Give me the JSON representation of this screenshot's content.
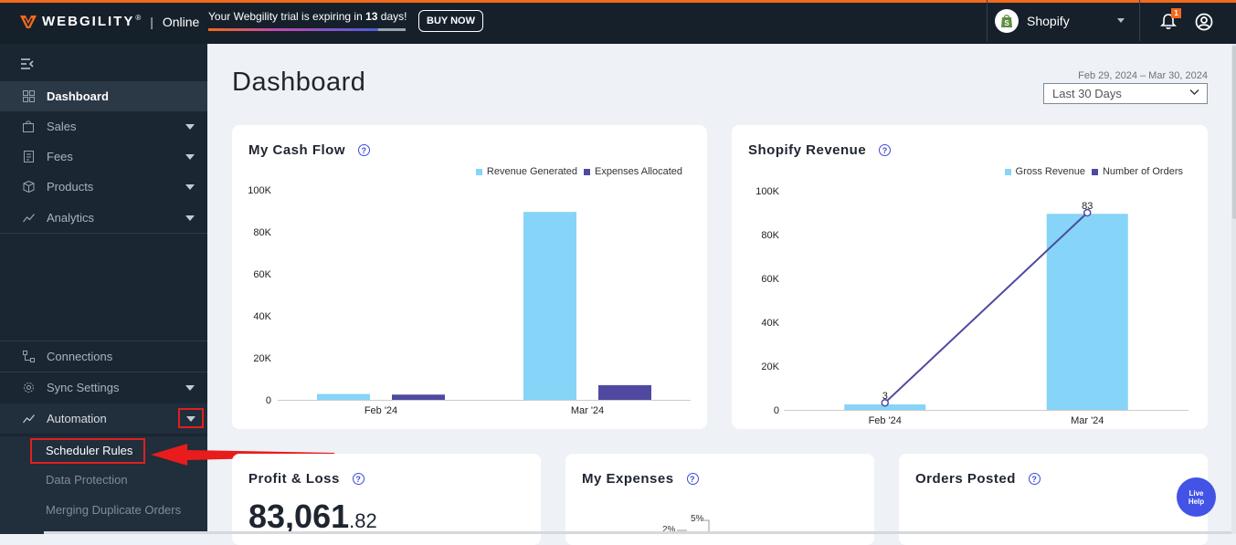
{
  "header": {
    "brand": "WEBGILITY",
    "brand_mark": "®",
    "separator": "|",
    "edition": "Online",
    "trial_prefix": "Your Webgility trial is expiring in ",
    "trial_days": "13",
    "trial_suffix": " days!",
    "trial_progress": 0.86,
    "buy_now": "BUY NOW",
    "store_name": "Shopify",
    "notification_count": "1",
    "icons": {
      "logo": "webgility-logo-icon",
      "store": "shopify-icon",
      "notifications": "bell-icon",
      "account": "user-icon",
      "store_dropdown": "caret-down-icon"
    }
  },
  "sidebar": {
    "collapse_icon": "collapse-menu-icon",
    "items": [
      {
        "label": "Dashboard",
        "icon": "dashboard-icon",
        "active": true
      },
      {
        "label": "Sales",
        "icon": "bag-icon",
        "expandable": true
      },
      {
        "label": "Fees",
        "icon": "receipt-icon",
        "expandable": true
      },
      {
        "label": "Products",
        "icon": "box-icon",
        "expandable": true
      },
      {
        "label": "Analytics",
        "icon": "trend-icon",
        "expandable": true
      }
    ],
    "bottom_items": [
      {
        "label": "Connections",
        "icon": "connections-icon"
      },
      {
        "label": "Sync Settings",
        "icon": "gear-icon",
        "expandable": true
      },
      {
        "label": "Automation",
        "icon": "automation-icon",
        "expandable": true,
        "expanded": true
      }
    ],
    "automation_submenu": [
      {
        "label": "Scheduler Rules",
        "highlighted": true
      },
      {
        "label": "Data Protection"
      },
      {
        "label": "Merging Duplicate Orders"
      }
    ]
  },
  "main": {
    "title": "Dashboard",
    "date_range": "Feb 29, 2024 – Mar 30, 2024",
    "date_filter": "Last 30 Days"
  },
  "cards": {
    "cash_flow": {
      "title": "My Cash Flow",
      "help": "?"
    },
    "shopify_revenue": {
      "title": "Shopify Revenue",
      "help": "?"
    },
    "profit_loss": {
      "title": "Profit & Loss",
      "help": "?",
      "value_main": "83,061",
      "value_decimal": ".82"
    },
    "expenses": {
      "title": "My Expenses",
      "help": "?",
      "labels": [
        "5%",
        "2%"
      ]
    },
    "orders_posted": {
      "title": "Orders Posted",
      "help": "?"
    }
  },
  "live_help": {
    "line1": "Live",
    "line2": "Help"
  },
  "colors": {
    "accent_orange": "#f26a1b",
    "topbar": "#16202b",
    "sidebar": "#1b2633",
    "series_light": "#86d4f7",
    "series_dark": "#4f4aa0",
    "highlight_red": "#e02020",
    "live_help": "#4353e6"
  },
  "chart_data": [
    {
      "type": "bar",
      "title": "My Cash Flow",
      "categories": [
        "Feb '24",
        "Mar '24"
      ],
      "series": [
        {
          "name": "Revenue Generated",
          "values": [
            2800,
            89500
          ],
          "color": "#86d4f7"
        },
        {
          "name": "Expenses Allocated",
          "values": [
            2500,
            7000
          ],
          "color": "#4f4aa0"
        }
      ],
      "ylim": [
        0,
        100000
      ],
      "yticks": [
        "0",
        "20K",
        "40K",
        "60K",
        "80K",
        "100K"
      ],
      "legend_position": "top-right",
      "grid": false
    },
    {
      "type": "bar",
      "title": "Shopify Revenue",
      "categories": [
        "Feb '24",
        "Mar '24"
      ],
      "series": [
        {
          "name": "Gross Revenue",
          "type": "bar",
          "values": [
            2500,
            89500
          ],
          "color": "#86d4f7"
        },
        {
          "name": "Number of Orders",
          "type": "line",
          "values": [
            3,
            83
          ],
          "color": "#4f4aa0",
          "data_labels": [
            "3",
            "83"
          ]
        }
      ],
      "ylim": [
        0,
        100000
      ],
      "yticks": [
        "0",
        "20K",
        "40K",
        "60K",
        "80K",
        "100K"
      ],
      "legend_position": "top-right",
      "grid": false
    }
  ]
}
